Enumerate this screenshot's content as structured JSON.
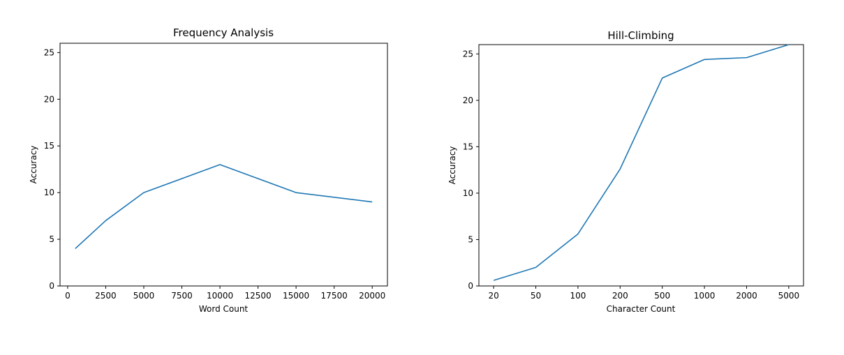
{
  "chart_data": [
    {
      "type": "line",
      "title": "Frequency Analysis",
      "xlabel": "Word Count",
      "ylabel": "Accuracy",
      "x": [
        500,
        2500,
        5000,
        10000,
        15000,
        20000
      ],
      "series": [
        {
          "values": [
            4,
            7,
            10,
            13,
            10,
            9
          ]
        }
      ],
      "xlim": [
        -500,
        21000
      ],
      "ylim": [
        0,
        26
      ],
      "xticks": [
        0,
        2500,
        5000,
        7500,
        10000,
        12500,
        15000,
        17500,
        20000
      ],
      "yticks": [
        0,
        5,
        10,
        15,
        20,
        25
      ],
      "grid": false,
      "line_color": "#1f77b4"
    },
    {
      "type": "line",
      "title": "Hill-Climbing",
      "xlabel": "Character Count",
      "ylabel": "Accuracy",
      "categories": [
        "20",
        "50",
        "100",
        "200",
        "500",
        "1000",
        "2000",
        "5000"
      ],
      "series": [
        {
          "values": [
            0.6,
            2.0,
            5.6,
            12.6,
            22.4,
            24.4,
            24.6,
            26.0
          ]
        }
      ],
      "ylim": [
        0,
        26
      ],
      "yticks": [
        0,
        5,
        10,
        15,
        20,
        25
      ],
      "grid": false,
      "line_color": "#1f77b4"
    }
  ]
}
